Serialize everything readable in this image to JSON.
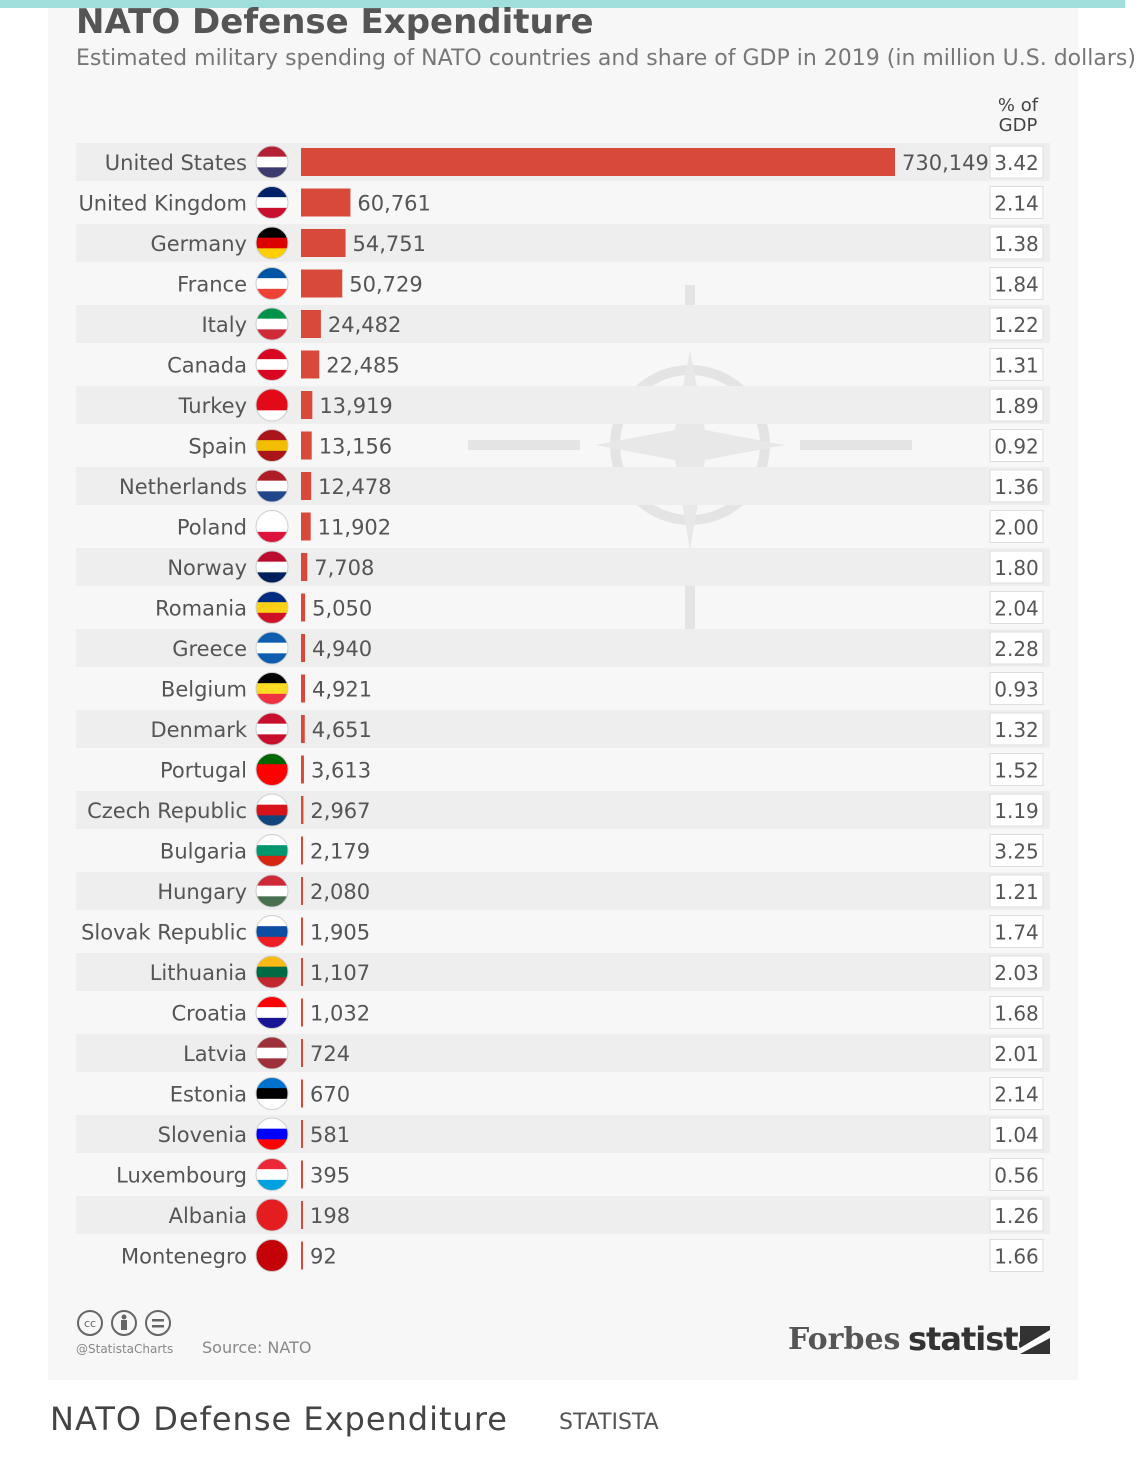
{
  "caption": {
    "title": "NATO Defense Expenditure",
    "source": "STATISTA"
  },
  "footer": {
    "handle": "@StatistaCharts",
    "source": "Source: NATO",
    "forbes": "Forbes",
    "statista": "statista"
  },
  "colors": {
    "bar": "#d9493a",
    "row_alt": "#eeeeee",
    "text": "#555555"
  },
  "chart_data": {
    "type": "bar",
    "orientation": "horizontal",
    "title": "NATO Defense Expenditure",
    "subtitle": "Estimated military spending of NATO countries and share of GDP in 2019 (in million U.S. dollars)",
    "gdp_header_line1": "% of",
    "gdp_header_line2": "GDP",
    "categories": [
      "United States",
      "United Kingdom",
      "Germany",
      "France",
      "Italy",
      "Canada",
      "Turkey",
      "Spain",
      "Netherlands",
      "Poland",
      "Norway",
      "Romania",
      "Greece",
      "Belgium",
      "Denmark",
      "Portugal",
      "Czech Republic",
      "Bulgaria",
      "Hungary",
      "Slovak Republic",
      "Lithuania",
      "Croatia",
      "Latvia",
      "Estonia",
      "Slovenia",
      "Luxembourg",
      "Albania",
      "Montenegro"
    ],
    "values": [
      730149,
      60761,
      54751,
      50729,
      24482,
      22485,
      13919,
      13156,
      12478,
      11902,
      7708,
      5050,
      4940,
      4921,
      4651,
      3613,
      2967,
      2179,
      2080,
      1905,
      1107,
      1032,
      724,
      670,
      581,
      395,
      198,
      92
    ],
    "value_labels": [
      "730,149",
      "60,761",
      "54,751",
      "50,729",
      "24,482",
      "22,485",
      "13,919",
      "13,156",
      "12,478",
      "11,902",
      "7,708",
      "5,050",
      "4,940",
      "4,921",
      "4,651",
      "3,613",
      "2,967",
      "2,179",
      "2,080",
      "1,905",
      "1,107",
      "1,032",
      "724",
      "670",
      "581",
      "395",
      "198",
      "92"
    ],
    "gdp_share": [
      "3.42",
      "2.14",
      "1.38",
      "1.84",
      "1.22",
      "1.31",
      "1.89",
      "0.92",
      "1.36",
      "2.00",
      "1.80",
      "2.04",
      "2.28",
      "0.93",
      "1.32",
      "1.52",
      "1.19",
      "3.25",
      "1.21",
      "1.74",
      "2.03",
      "1.68",
      "2.01",
      "2.14",
      "1.04",
      "0.56",
      "1.26",
      "1.66"
    ],
    "flags": [
      [
        "#b22234",
        "#ffffff",
        "#3c3b6e"
      ],
      [
        "#012169",
        "#ffffff",
        "#c8102e"
      ],
      [
        "#000000",
        "#dd0000",
        "#ffce00"
      ],
      [
        "#0055a4",
        "#ffffff",
        "#ef4135"
      ],
      [
        "#009246",
        "#ffffff",
        "#ce2b37"
      ],
      [
        "#d80621",
        "#ffffff",
        "#d80621"
      ],
      [
        "#e30a17",
        "#e30a17",
        "#ffffff"
      ],
      [
        "#aa151b",
        "#f1bf00",
        "#aa151b"
      ],
      [
        "#ae1c28",
        "#ffffff",
        "#21468b"
      ],
      [
        "#ffffff",
        "#ffffff",
        "#dc143c"
      ],
      [
        "#ba0c2f",
        "#ffffff",
        "#00205b"
      ],
      [
        "#002b7f",
        "#fcd116",
        "#ce1126"
      ],
      [
        "#0d5eaf",
        "#ffffff",
        "#0d5eaf"
      ],
      [
        "#000000",
        "#fdda24",
        "#ef3340"
      ],
      [
        "#c8102e",
        "#ffffff",
        "#c8102e"
      ],
      [
        "#006600",
        "#ff0000",
        "#ff0000"
      ],
      [
        "#ffffff",
        "#d7141a",
        "#11457e"
      ],
      [
        "#ffffff",
        "#00966e",
        "#d62612"
      ],
      [
        "#ce2939",
        "#ffffff",
        "#477050"
      ],
      [
        "#ffffff",
        "#0b4ea2",
        "#ee1c25"
      ],
      [
        "#fdb913",
        "#006a44",
        "#c1272d"
      ],
      [
        "#ff0000",
        "#ffffff",
        "#171796"
      ],
      [
        "#9e3039",
        "#ffffff",
        "#9e3039"
      ],
      [
        "#0072ce",
        "#000000",
        "#ffffff"
      ],
      [
        "#ffffff",
        "#0000ff",
        "#ff0000"
      ],
      [
        "#ed2939",
        "#ffffff",
        "#00a1de"
      ],
      [
        "#e41e20",
        "#e41e20",
        "#e41e20"
      ],
      [
        "#c40308",
        "#c40308",
        "#c40308"
      ]
    ],
    "xlim": [
      0,
      730149
    ],
    "grid": false,
    "legend": "none"
  }
}
